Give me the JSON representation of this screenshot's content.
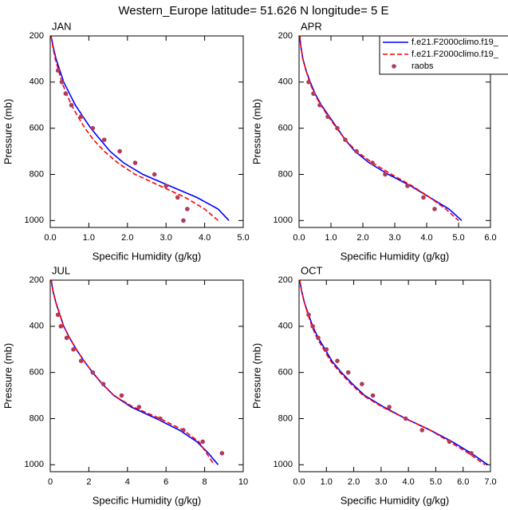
{
  "title": "Western_Europe  latitude= 51.626 N longitude= 5 E",
  "chart_data": [
    {
      "type": "line",
      "title": "JAN",
      "x_label": "Specific Humidity (g/kg)",
      "y_label": "Pressure (mb)",
      "xlim": [
        0,
        5
      ],
      "xticks": [
        {
          "value": 0,
          "label": "0.0"
        },
        {
          "value": 1,
          "label": "1.0"
        },
        {
          "value": 2,
          "label": "2.0"
        },
        {
          "value": 3,
          "label": "3.0"
        },
        {
          "value": 4,
          "label": "4.0"
        },
        {
          "value": 5,
          "label": "5.0"
        }
      ],
      "ylim": [
        1030,
        200
      ],
      "yticks": [
        200,
        400,
        600,
        800,
        1000
      ],
      "legend": false,
      "series": [
        {
          "name": "f.e21.F2000climo.f19_",
          "color": "#0000ff",
          "dash": false,
          "marker": false,
          "x": [
            0.02,
            0.08,
            0.15,
            0.25,
            0.35,
            0.5,
            0.65,
            0.85,
            1.05,
            1.3,
            1.55,
            1.9,
            2.4,
            3.1,
            3.8,
            4.35,
            4.63
          ],
          "y": [
            200,
            250,
            300,
            350,
            400,
            450,
            500,
            550,
            600,
            650,
            700,
            750,
            800,
            850,
            900,
            950,
            1000
          ]
        },
        {
          "name": "f.e21.F2000climo.f19_",
          "color": "#ff0000",
          "dash": true,
          "marker": false,
          "x": [
            0.02,
            0.07,
            0.13,
            0.22,
            0.3,
            0.42,
            0.55,
            0.72,
            0.9,
            1.12,
            1.4,
            1.75,
            2.2,
            2.85,
            3.5,
            4.0,
            4.35
          ],
          "y": [
            200,
            250,
            300,
            350,
            400,
            450,
            500,
            550,
            600,
            650,
            700,
            750,
            800,
            850,
            900,
            950,
            1000
          ]
        },
        {
          "name": "raobs",
          "color": "#b03a5b",
          "dash": false,
          "marker": true,
          "x": [
            0.2,
            0.3,
            0.4,
            0.55,
            0.8,
            1.1,
            1.4,
            1.8,
            2.2,
            2.7,
            3.0,
            3.3,
            3.55,
            3.45
          ],
          "y": [
            350,
            400,
            450,
            500,
            550,
            600,
            650,
            700,
            750,
            800,
            850,
            900,
            950,
            1000
          ]
        }
      ]
    },
    {
      "type": "line",
      "title": "APR",
      "x_label": "Specific Humidity (g/kg)",
      "y_label": "Pressure (mb)",
      "xlim": [
        0,
        6
      ],
      "xticks": [
        {
          "value": 0,
          "label": "0.0"
        },
        {
          "value": 1,
          "label": "1.0"
        },
        {
          "value": 2,
          "label": "2.0"
        },
        {
          "value": 3,
          "label": "3.0"
        },
        {
          "value": 4,
          "label": "4.0"
        },
        {
          "value": 5,
          "label": "5.0"
        },
        {
          "value": 6,
          "label": "6.0"
        }
      ],
      "ylim": [
        1030,
        200
      ],
      "yticks": [
        200,
        400,
        600,
        800,
        1000
      ],
      "legend": "upper right",
      "series": [
        {
          "name": "f.e21.F2000climo.f19_",
          "color": "#0000ff",
          "dash": false,
          "marker": false,
          "x": [
            0.02,
            0.06,
            0.12,
            0.22,
            0.35,
            0.5,
            0.7,
            0.95,
            1.2,
            1.45,
            1.75,
            2.2,
            2.8,
            3.5,
            4.1,
            4.7,
            5.1
          ],
          "y": [
            200,
            250,
            300,
            350,
            400,
            450,
            500,
            550,
            600,
            650,
            700,
            750,
            800,
            850,
            900,
            950,
            1000
          ]
        },
        {
          "name": "f.e21.F2000climo.f19_",
          "color": "#ff0000",
          "dash": true,
          "marker": false,
          "x": [
            0.02,
            0.06,
            0.12,
            0.22,
            0.33,
            0.48,
            0.68,
            0.92,
            1.18,
            1.45,
            1.8,
            2.3,
            2.9,
            3.55,
            4.1,
            4.6,
            5.0
          ],
          "y": [
            200,
            250,
            300,
            350,
            400,
            450,
            500,
            550,
            600,
            650,
            700,
            750,
            800,
            850,
            900,
            950,
            1000
          ]
        },
        {
          "name": "raobs",
          "color": "#b03a5b",
          "dash": false,
          "marker": true,
          "x": [
            0.3,
            0.45,
            0.65,
            0.9,
            1.2,
            1.45,
            1.8,
            2.3,
            2.7,
            3.4,
            3.9,
            4.25
          ],
          "y": [
            400,
            450,
            500,
            550,
            600,
            650,
            700,
            750,
            800,
            850,
            900,
            950
          ]
        }
      ]
    },
    {
      "type": "line",
      "title": "JUL",
      "x_label": "Specific Humidity (g/kg)",
      "y_label": "Pressure (mb)",
      "xlim": [
        0,
        10
      ],
      "xticks": [
        0,
        2,
        4,
        6,
        8,
        10
      ],
      "ylim": [
        1030,
        200
      ],
      "yticks": [
        200,
        400,
        600,
        800,
        1000
      ],
      "legend": false,
      "series": [
        {
          "name": "f.e21.F2000climo.f19_",
          "color": "#0000ff",
          "dash": false,
          "marker": false,
          "x": [
            0.05,
            0.15,
            0.3,
            0.5,
            0.7,
            1.0,
            1.35,
            1.75,
            2.2,
            2.7,
            3.3,
            4.2,
            5.5,
            6.7,
            7.6,
            8.2,
            8.7
          ],
          "y": [
            200,
            250,
            300,
            350,
            400,
            450,
            500,
            550,
            600,
            650,
            700,
            750,
            800,
            850,
            900,
            950,
            1000
          ]
        },
        {
          "name": "f.e21.F2000climo.f19_",
          "color": "#ff0000",
          "dash": true,
          "marker": false,
          "x": [
            0.05,
            0.15,
            0.3,
            0.5,
            0.7,
            1.0,
            1.35,
            1.75,
            2.2,
            2.7,
            3.3,
            4.3,
            5.7,
            6.9,
            7.7,
            8.1,
            8.5
          ],
          "y": [
            200,
            250,
            300,
            350,
            400,
            450,
            500,
            550,
            600,
            650,
            700,
            750,
            800,
            850,
            900,
            950,
            1000
          ]
        },
        {
          "name": "raobs",
          "color": "#b03a5b",
          "dash": false,
          "marker": true,
          "x": [
            0.4,
            0.55,
            0.85,
            1.2,
            1.6,
            2.2,
            2.75,
            3.7,
            4.6,
            5.7,
            6.9,
            7.9,
            8.9
          ],
          "y": [
            350,
            400,
            450,
            500,
            550,
            600,
            650,
            700,
            750,
            800,
            850,
            900,
            950
          ]
        }
      ]
    },
    {
      "type": "line",
      "title": "OCT",
      "x_label": "Specific Humidity (g/kg)",
      "y_label": "Pressure (mb)",
      "xlim": [
        0,
        7
      ],
      "xticks": [
        {
          "value": 0,
          "label": "0.0"
        },
        {
          "value": 1,
          "label": "1.0"
        },
        {
          "value": 2,
          "label": "2.0"
        },
        {
          "value": 3,
          "label": "3.0"
        },
        {
          "value": 4,
          "label": "4.0"
        },
        {
          "value": 5,
          "label": "5.0"
        },
        {
          "value": 6,
          "label": "6.0"
        },
        {
          "value": 7,
          "label": "7.0"
        }
      ],
      "ylim": [
        1030,
        200
      ],
      "yticks": [
        200,
        400,
        600,
        800,
        1000
      ],
      "legend": false,
      "series": [
        {
          "name": "f.e21.F2000climo.f19_",
          "color": "#0000ff",
          "dash": false,
          "marker": false,
          "x": [
            0.02,
            0.1,
            0.2,
            0.35,
            0.5,
            0.7,
            0.95,
            1.2,
            1.55,
            1.95,
            2.4,
            3.1,
            3.9,
            4.8,
            5.6,
            6.3,
            6.9
          ],
          "y": [
            200,
            250,
            300,
            350,
            400,
            450,
            500,
            550,
            600,
            650,
            700,
            750,
            800,
            850,
            900,
            950,
            1000
          ]
        },
        {
          "name": "f.e21.F2000climo.f19_",
          "color": "#ff0000",
          "dash": true,
          "marker": false,
          "x": [
            0.02,
            0.1,
            0.2,
            0.33,
            0.47,
            0.65,
            0.9,
            1.15,
            1.5,
            1.9,
            2.35,
            3.05,
            3.9,
            4.8,
            5.5,
            6.2,
            6.8
          ],
          "y": [
            200,
            250,
            300,
            350,
            400,
            450,
            500,
            550,
            600,
            650,
            700,
            750,
            800,
            850,
            900,
            950,
            1000
          ]
        },
        {
          "name": "raobs",
          "color": "#b03a5b",
          "dash": false,
          "marker": true,
          "x": [
            0.35,
            0.5,
            0.7,
            1.0,
            1.4,
            1.8,
            2.3,
            2.7,
            3.3,
            3.9,
            4.5,
            5.5,
            6.3
          ],
          "y": [
            350,
            400,
            450,
            500,
            550,
            600,
            650,
            700,
            750,
            800,
            850,
            900,
            950
          ]
        }
      ]
    }
  ]
}
